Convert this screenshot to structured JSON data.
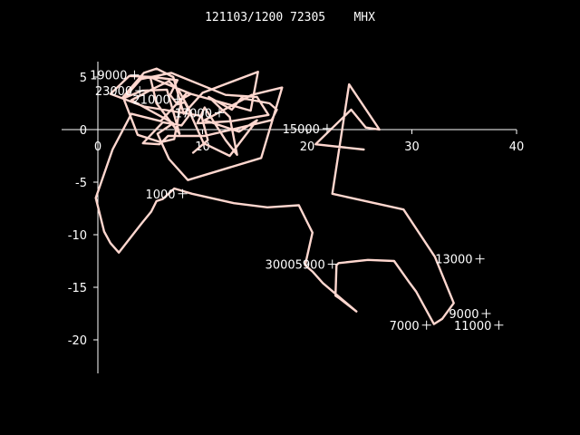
{
  "header": {
    "title": "121103/1200 72305    MHX"
  },
  "chart_data": {
    "type": "line",
    "title": "121103/1200 72305    MHX",
    "subtitle": "",
    "xlabel": "",
    "ylabel": "",
    "xlim": [
      0,
      40
    ],
    "ylim": [
      -23,
      6
    ],
    "xticks": [
      0,
      10,
      20,
      30,
      40
    ],
    "yticks": [
      5,
      0,
      -5,
      -10,
      -15,
      -20
    ],
    "grid": false,
    "colors": {
      "background": "#000000",
      "axes": "#ffffff",
      "text": "#ffffff",
      "trace": "#ffd7cf"
    },
    "series": [
      {
        "values": [
          [
            25.4,
            -1.9
          ],
          [
            20.8,
            -1.4
          ],
          [
            24.2,
            1.9
          ],
          [
            25.6,
            0.2
          ],
          [
            26.9,
            0.0
          ],
          [
            24.0,
            4.3
          ],
          [
            22.4,
            -6.1
          ],
          [
            29.2,
            -7.6
          ],
          [
            32.2,
            -12.1
          ],
          [
            34.0,
            -16.5
          ],
          [
            32.9,
            -18.0
          ],
          [
            32.1,
            -18.5
          ],
          [
            30.4,
            -15.4
          ],
          [
            29.8,
            -14.6
          ],
          [
            28.3,
            -12.5
          ],
          [
            25.8,
            -12.4
          ],
          [
            23.0,
            -12.7
          ],
          [
            22.8,
            -12.9
          ],
          [
            22.7,
            -15.8
          ],
          [
            23.0,
            -16.0
          ],
          [
            24.7,
            -17.3
          ],
          [
            21.5,
            -14.6
          ],
          [
            20.5,
            -13.5
          ],
          [
            19.8,
            -12.9
          ],
          [
            20.5,
            -9.8
          ],
          [
            20.0,
            -8.8
          ],
          [
            19.3,
            -7.4
          ],
          [
            19.2,
            -7.2
          ],
          [
            16.2,
            -7.4
          ],
          [
            13.0,
            -7.0
          ],
          [
            9.0,
            -6.1
          ],
          [
            7.3,
            -5.6
          ],
          [
            6.2,
            -6.6
          ],
          [
            5.6,
            -6.8
          ],
          [
            5.1,
            -7.8
          ],
          [
            4.2,
            -8.9
          ],
          [
            2.0,
            -11.7
          ],
          [
            1.2,
            -10.8
          ],
          [
            0.6,
            -9.7
          ],
          [
            -0.2,
            -6.5
          ],
          [
            1.4,
            -1.9
          ],
          [
            3.2,
            1.5
          ],
          [
            6.0,
            0.8
          ],
          [
            8.5,
            3.5
          ],
          [
            14.6,
            1.8
          ],
          [
            15.3,
            5.5
          ],
          [
            10.0,
            3.5
          ],
          [
            8.2,
            1.5
          ],
          [
            7.2,
            5.0
          ],
          [
            5.6,
            5.8
          ],
          [
            4.4,
            5.4
          ],
          [
            2.4,
            3.1
          ],
          [
            3.8,
            -0.5
          ],
          [
            6.0,
            -1.2
          ],
          [
            7.3,
            -0.9
          ],
          [
            8.0,
            2.9
          ],
          [
            8.9,
            3.4
          ],
          [
            5.9,
            4.6
          ],
          [
            5.0,
            5.0
          ],
          [
            5.6,
            2.5
          ],
          [
            7.8,
            -0.4
          ],
          [
            6.6,
            3.8
          ],
          [
            4.2,
            3.7
          ],
          [
            2.5,
            3.0
          ],
          [
            4.1,
            4.8
          ],
          [
            7.0,
            5.4
          ],
          [
            12.2,
            3.3
          ],
          [
            15.2,
            3.1
          ],
          [
            16.3,
            1.4
          ],
          [
            12.8,
            0.8
          ],
          [
            9.5,
            0.6
          ],
          [
            10.2,
            2.1
          ],
          [
            12.2,
            -1.0
          ],
          [
            13.3,
            -2.4
          ],
          [
            12.6,
            1.2
          ],
          [
            10.6,
            3.1
          ],
          [
            12.8,
            1.9
          ],
          [
            13.7,
            3.0
          ],
          [
            16.4,
            2.5
          ],
          [
            17.1,
            1.9
          ],
          [
            16.6,
            0.9
          ],
          [
            10.2,
            -0.6
          ],
          [
            6.7,
            -0.6
          ],
          [
            5.9,
            -1.4
          ],
          [
            4.3,
            -1.3
          ],
          [
            6.2,
            0.7
          ],
          [
            8.0,
            0.4
          ],
          [
            8.9,
            1.6
          ],
          [
            7.8,
            3.6
          ],
          [
            6.8,
            4.6
          ],
          [
            5.3,
            3.9
          ],
          [
            3.2,
            2.8
          ],
          [
            5.2,
            1.7
          ],
          [
            7.2,
            0.6
          ],
          [
            5.7,
            -0.4
          ],
          [
            6.8,
            -2.8
          ],
          [
            8.6,
            -4.8
          ],
          [
            15.6,
            -2.7
          ],
          [
            17.6,
            4.0
          ],
          [
            14.7,
            3.3
          ],
          [
            10.2,
            0.9
          ],
          [
            13.5,
            -0.2
          ],
          [
            15.2,
            0.9
          ],
          [
            12.6,
            -2.5
          ],
          [
            10.1,
            -1.3
          ],
          [
            8.8,
            1.6
          ],
          [
            8.3,
            2.6
          ],
          [
            7.6,
            2.4
          ],
          [
            6.9,
            3.3
          ],
          [
            7.6,
            4.7
          ],
          [
            5.3,
            5.0
          ],
          [
            3.0,
            5.1
          ],
          [
            1.2,
            3.4
          ],
          [
            4.4,
            2.2
          ],
          [
            9.9,
            1.3
          ],
          [
            10.5,
            -1.0
          ],
          [
            9.1,
            -2.2
          ]
        ]
      }
    ],
    "height_labels": [
      {
        "text": "19000",
        "x": 3.5,
        "y": 5.2
      },
      {
        "text": "23000",
        "x": 4.0,
        "y": 3.7
      },
      {
        "text": "21000",
        "x": 7.6,
        "y": 2.9
      },
      {
        "text": "17000",
        "x": 11.6,
        "y": 1.6
      },
      {
        "text": "15000",
        "x": 21.9,
        "y": 0.1
      },
      {
        "text": "1000",
        "x": 8.1,
        "y": -6.1
      },
      {
        "text": "30005900",
        "x": 22.4,
        "y": -12.8
      },
      {
        "text": "13000",
        "x": 36.5,
        "y": -12.3
      },
      {
        "text": "9000",
        "x": 37.1,
        "y": -17.5
      },
      {
        "text": "7000",
        "x": 31.4,
        "y": -18.6
      },
      {
        "text": "11000",
        "x": 38.3,
        "y": -18.6
      }
    ],
    "axis_labels": {
      "x_ticks": [
        "0",
        "10",
        "20",
        "30",
        "40"
      ],
      "y_ticks": [
        "5",
        "0",
        "-5",
        "-10",
        "-15",
        "-20"
      ]
    }
  }
}
